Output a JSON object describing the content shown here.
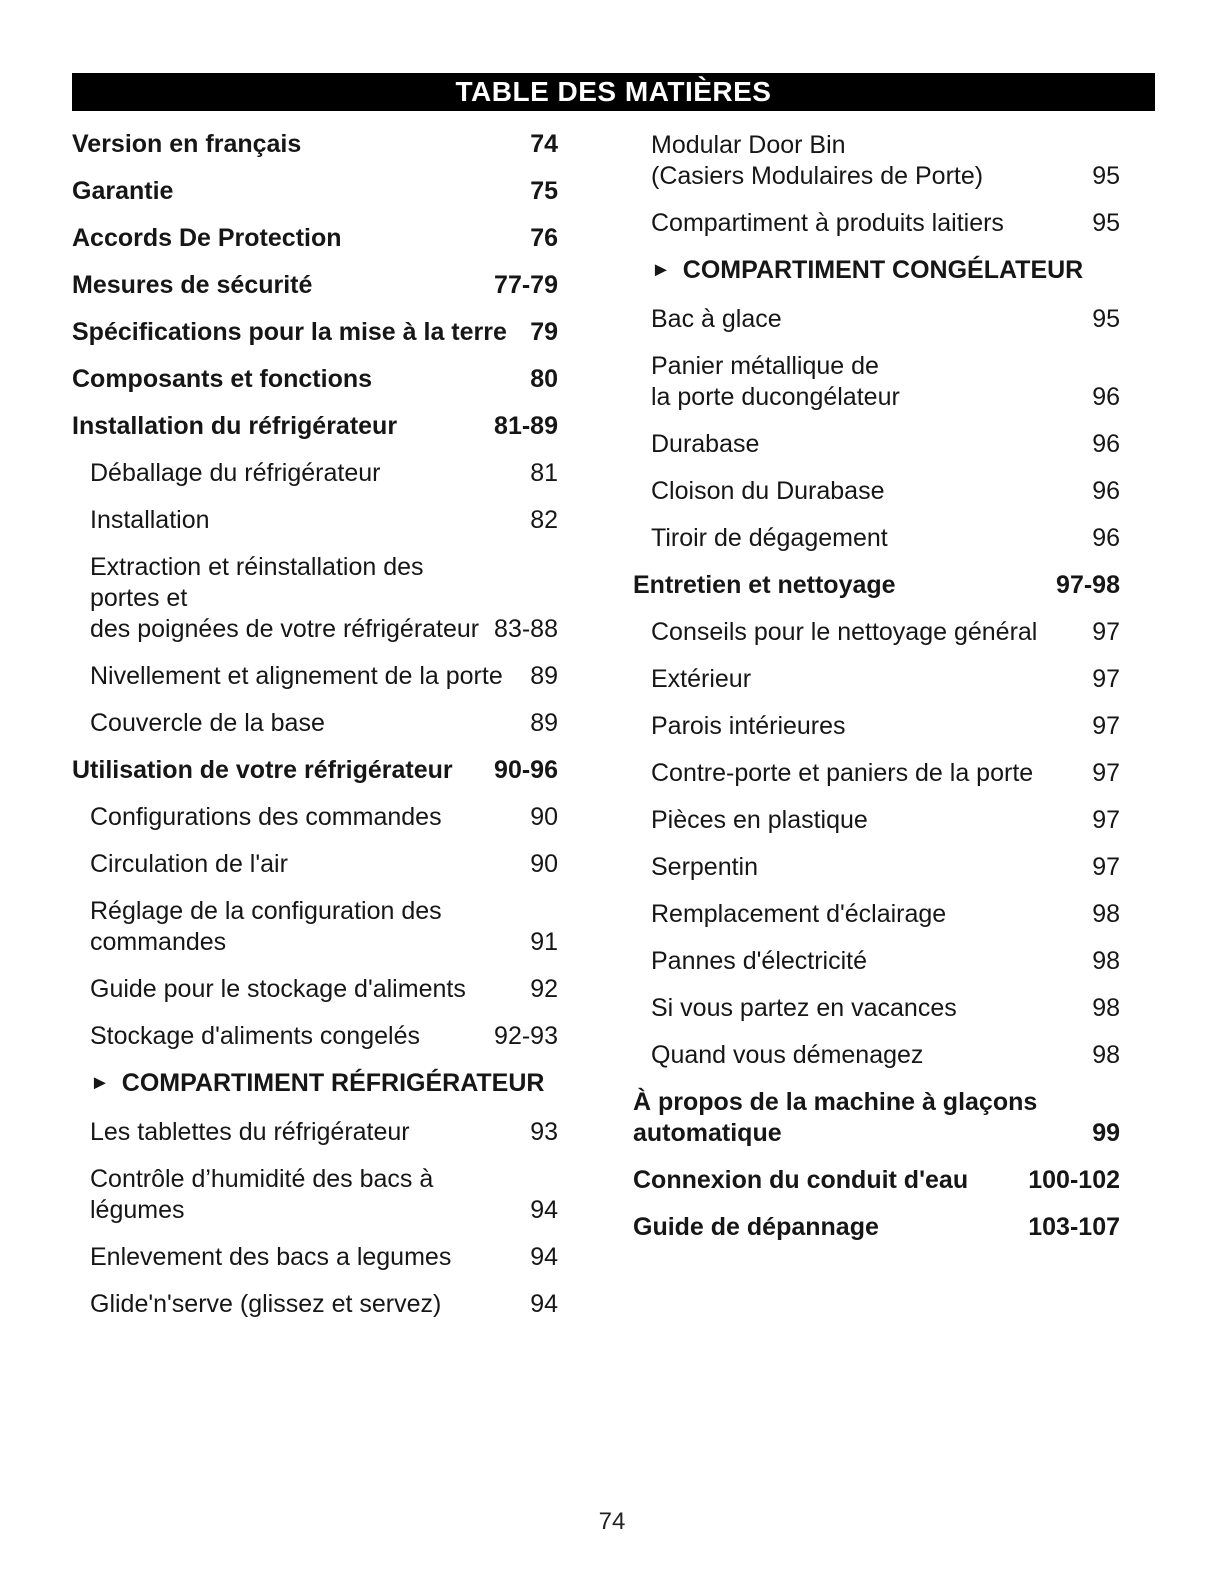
{
  "header": {
    "title": "TABLE DES MATIÈRES"
  },
  "icons": {
    "section_arrow": "►"
  },
  "footer": {
    "page_number": "74"
  },
  "left_column": {
    "entries": [
      {
        "label_lines": [
          "Version en français"
        ],
        "pages": "74",
        "level": "section"
      },
      {
        "label_lines": [
          "Garantie"
        ],
        "pages": "75",
        "level": "section"
      },
      {
        "label_lines": [
          "Accords De Protection"
        ],
        "pages": "76",
        "level": "section"
      },
      {
        "label_lines": [
          "Mesures de sécurité"
        ],
        "pages": "77-79",
        "level": "section"
      },
      {
        "label_lines": [
          "Spécifications pour la mise à la terre"
        ],
        "pages": "79",
        "level": "section"
      },
      {
        "label_lines": [
          "Composants et fonctions"
        ],
        "pages": "80",
        "level": "section"
      },
      {
        "label_lines": [
          "Installation du réfrigérateur"
        ],
        "pages": "81-89",
        "level": "section"
      },
      {
        "label_lines": [
          "Déballage du réfrigérateur"
        ],
        "pages": "81",
        "level": "item"
      },
      {
        "label_lines": [
          "Installation"
        ],
        "pages": "82",
        "level": "item"
      },
      {
        "label_lines": [
          "Extraction et réinstallation des portes et",
          "des poignées de votre réfrigérateur"
        ],
        "pages": "83-88",
        "level": "item"
      },
      {
        "label_lines": [
          "Nivellement et alignement de la porte"
        ],
        "pages": "89",
        "level": "item"
      },
      {
        "label_lines": [
          "Couvercle de la base"
        ],
        "pages": "89",
        "level": "item"
      },
      {
        "label_lines": [
          "Utilisation de votre réfrigérateur"
        ],
        "pages": "90-96",
        "level": "section"
      },
      {
        "label_lines": [
          "Configurations des commandes"
        ],
        "pages": "90",
        "level": "item"
      },
      {
        "label_lines": [
          "Circulation de l'air"
        ],
        "pages": "90",
        "level": "item"
      },
      {
        "label_lines": [
          "Réglage de la configuration des",
          "commandes"
        ],
        "pages": "91",
        "level": "item"
      },
      {
        "label_lines": [
          "Guide pour le stockage d'aliments"
        ],
        "pages": "92",
        "level": "item"
      },
      {
        "label_lines": [
          "Stockage d'aliments congelés"
        ],
        "pages": "92-93",
        "level": "item"
      },
      {
        "label_lines": [
          "COMPARTIMENT RÉFRIGÉRATEUR"
        ],
        "pages": "",
        "level": "category"
      },
      {
        "label_lines": [
          "Les tablettes du réfrigérateur"
        ],
        "pages": "93",
        "level": "item"
      },
      {
        "label_lines": [
          "Contrôle d’humidité des bacs à légumes"
        ],
        "pages": "94",
        "level": "item"
      },
      {
        "label_lines": [
          "Enlevement des bacs a legumes"
        ],
        "pages": "94",
        "level": "item"
      },
      {
        "label_lines": [
          "Glide'n'serve (glissez et servez)"
        ],
        "pages": "94",
        "level": "item"
      }
    ]
  },
  "right_column": {
    "entries": [
      {
        "label_lines": [
          "Modular Door Bin",
          "(Casiers Modulaires de Porte)"
        ],
        "pages": "95",
        "level": "item"
      },
      {
        "label_lines": [
          "Compartiment à produits laitiers"
        ],
        "pages": "95",
        "level": "item"
      },
      {
        "label_lines": [
          "COMPARTIMENT CONGÉLATEUR"
        ],
        "pages": "",
        "level": "category"
      },
      {
        "label_lines": [
          "Bac à glace"
        ],
        "pages": "95",
        "level": "item"
      },
      {
        "label_lines": [
          "Panier métallique de",
          "la porte ducongélateur"
        ],
        "pages": "96",
        "level": "item"
      },
      {
        "label_lines": [
          "Durabase"
        ],
        "pages": "96",
        "level": "item"
      },
      {
        "label_lines": [
          "Cloison du Durabase"
        ],
        "pages": "96",
        "level": "item"
      },
      {
        "label_lines": [
          "Tiroir de dégagement"
        ],
        "pages": "96",
        "level": "item"
      },
      {
        "label_lines": [
          "Entretien et nettoyage"
        ],
        "pages": "97-98",
        "level": "section"
      },
      {
        "label_lines": [
          "Conseils pour le nettoyage général"
        ],
        "pages": "97",
        "level": "item"
      },
      {
        "label_lines": [
          "Extérieur"
        ],
        "pages": "97",
        "level": "item"
      },
      {
        "label_lines": [
          "Parois intérieures"
        ],
        "pages": "97",
        "level": "item"
      },
      {
        "label_lines": [
          "Contre-porte et paniers de la porte"
        ],
        "pages": "97",
        "level": "item"
      },
      {
        "label_lines": [
          "Pièces en plastique"
        ],
        "pages": "97",
        "level": "item"
      },
      {
        "label_lines": [
          "Serpentin"
        ],
        "pages": "97",
        "level": "item"
      },
      {
        "label_lines": [
          "Remplacement d'éclairage"
        ],
        "pages": "98",
        "level": "item"
      },
      {
        "label_lines": [
          "Pannes d'électricité"
        ],
        "pages": "98",
        "level": "item"
      },
      {
        "label_lines": [
          "Si vous partez en vacances"
        ],
        "pages": "98",
        "level": "item"
      },
      {
        "label_lines": [
          "Quand vous démenagez"
        ],
        "pages": "98",
        "level": "item"
      },
      {
        "label_lines": [
          "À propos de la machine à glaçons",
          "automatique"
        ],
        "pages": "99",
        "level": "section"
      },
      {
        "label_lines": [
          "Connexion du conduit d'eau"
        ],
        "pages": "100-102",
        "level": "section"
      },
      {
        "label_lines": [
          "Guide de dépannage"
        ],
        "pages": "103-107",
        "level": "section"
      }
    ]
  }
}
